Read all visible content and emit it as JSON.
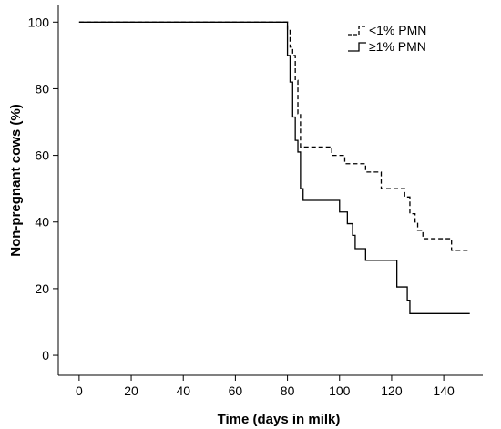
{
  "chart_data": {
    "type": "line",
    "title": "",
    "xlabel": "Time (days in milk)",
    "ylabel": "Non-pregnant cows (%)",
    "xlim": [
      -8,
      155
    ],
    "ylim": [
      -6,
      105
    ],
    "xticks": [
      0,
      20,
      40,
      60,
      80,
      100,
      120,
      140
    ],
    "yticks": [
      0,
      20,
      40,
      60,
      80,
      100
    ],
    "grid": false,
    "legend_position": "top-right",
    "step": true,
    "series": [
      {
        "name": "<1% PMN",
        "style": "dashed",
        "color": "#000000",
        "points": [
          [
            0,
            100
          ],
          [
            80,
            100
          ],
          [
            80,
            97.5
          ],
          [
            81,
            97.5
          ],
          [
            81,
            92.5
          ],
          [
            82,
            92.5
          ],
          [
            82,
            90
          ],
          [
            83,
            90
          ],
          [
            83,
            82.5
          ],
          [
            84,
            82.5
          ],
          [
            84,
            72.5
          ],
          [
            85,
            72.5
          ],
          [
            85,
            62.5
          ],
          [
            97,
            62.5
          ],
          [
            97,
            60
          ],
          [
            102,
            60
          ],
          [
            102,
            57.5
          ],
          [
            110,
            57.5
          ],
          [
            110,
            55
          ],
          [
            116,
            55
          ],
          [
            116,
            50
          ],
          [
            125,
            50
          ],
          [
            125,
            47.5
          ],
          [
            127,
            47.5
          ],
          [
            127,
            42.5
          ],
          [
            129,
            42.5
          ],
          [
            129,
            40
          ],
          [
            130,
            40
          ],
          [
            130,
            37.5
          ],
          [
            132,
            37.5
          ],
          [
            132,
            35
          ],
          [
            143,
            35
          ],
          [
            143,
            31.5
          ],
          [
            150,
            31.5
          ]
        ]
      },
      {
        "name": "≥1% PMN",
        "style": "solid",
        "color": "#000000",
        "points": [
          [
            0,
            100
          ],
          [
            80,
            100
          ],
          [
            80,
            90
          ],
          [
            81,
            90
          ],
          [
            81,
            82
          ],
          [
            82,
            82
          ],
          [
            82,
            71.5
          ],
          [
            83,
            71.5
          ],
          [
            83,
            64.5
          ],
          [
            84,
            64.5
          ],
          [
            84,
            61
          ],
          [
            85,
            61
          ],
          [
            85,
            50
          ],
          [
            86,
            50
          ],
          [
            86,
            46.5
          ],
          [
            100,
            46.5
          ],
          [
            100,
            43
          ],
          [
            103,
            43
          ],
          [
            103,
            39.5
          ],
          [
            105,
            39.5
          ],
          [
            105,
            36
          ],
          [
            106,
            36
          ],
          [
            106,
            32
          ],
          [
            110,
            32
          ],
          [
            110,
            28.5
          ],
          [
            122,
            28.5
          ],
          [
            122,
            20.5
          ],
          [
            126,
            20.5
          ],
          [
            126,
            16.5
          ],
          [
            127,
            16.5
          ],
          [
            127,
            12.5
          ],
          [
            150,
            12.5
          ]
        ]
      }
    ]
  }
}
